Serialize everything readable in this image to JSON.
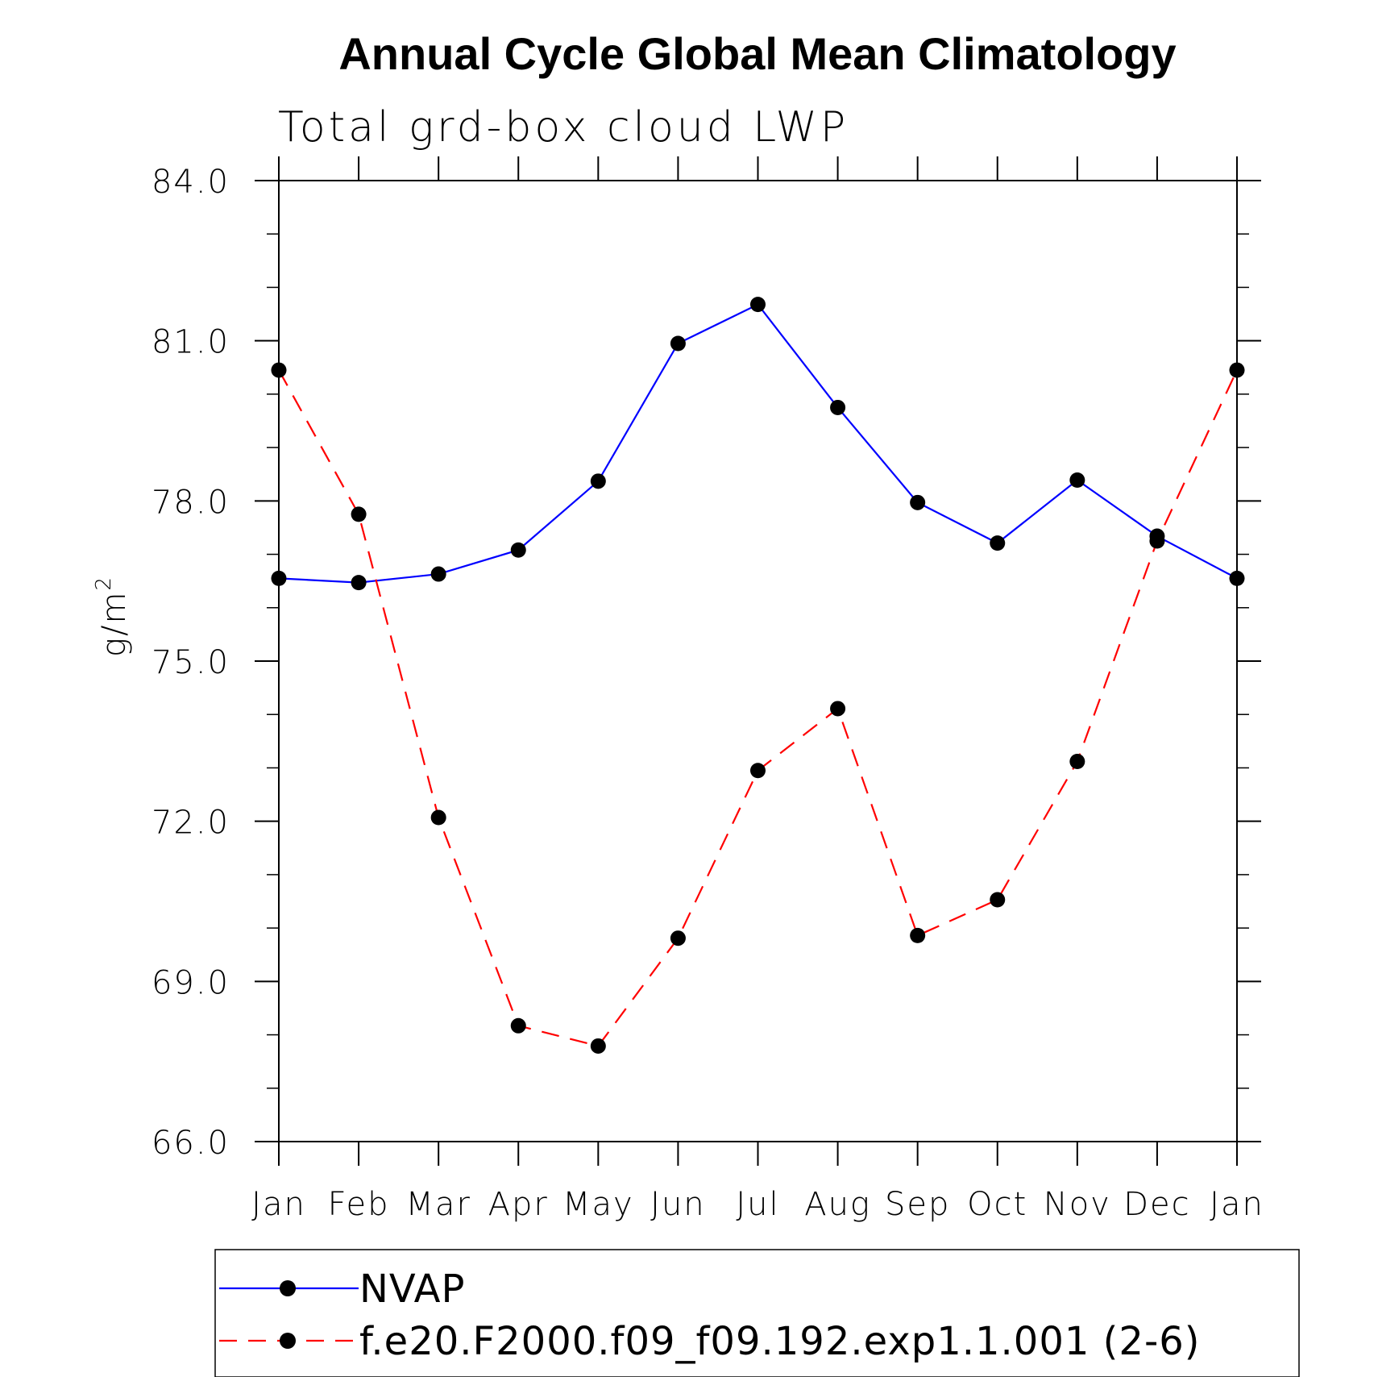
{
  "chart_data": {
    "type": "line",
    "title": "Annual Cycle Global Mean Climatology",
    "subtitle": "Total grd-box cloud LWP",
    "ylabel_main": "g/m",
    "ylabel_sup": "2",
    "ylim": [
      66.0,
      84.0
    ],
    "yticks": [
      "66.0",
      "69.0",
      "72.0",
      "75.0",
      "78.0",
      "81.0",
      "84.0"
    ],
    "ytick_values": [
      66,
      69,
      72,
      75,
      78,
      81,
      84
    ],
    "ystep_minor": 1,
    "categories": [
      "Jan",
      "Feb",
      "Mar",
      "Apr",
      "May",
      "Jun",
      "Jul",
      "Aug",
      "Sep",
      "Oct",
      "Nov",
      "Dec",
      "Jan"
    ],
    "series": [
      {
        "name": "NVAP",
        "color": "#0000ff",
        "dash": "solid",
        "values": [
          76.55,
          76.47,
          76.63,
          77.08,
          78.37,
          80.95,
          81.68,
          79.75,
          77.97,
          77.21,
          78.39,
          77.34,
          76.55
        ]
      },
      {
        "name": "f.e20.F2000.f09_f09.192.exp1.1.001 (2-6)",
        "color": "#ff0000",
        "dash": "dashed",
        "values": [
          80.45,
          77.75,
          72.07,
          68.17,
          67.79,
          69.81,
          72.95,
          74.11,
          69.86,
          70.53,
          73.12,
          77.25,
          80.45
        ]
      }
    ],
    "legend_position": "bottom"
  }
}
